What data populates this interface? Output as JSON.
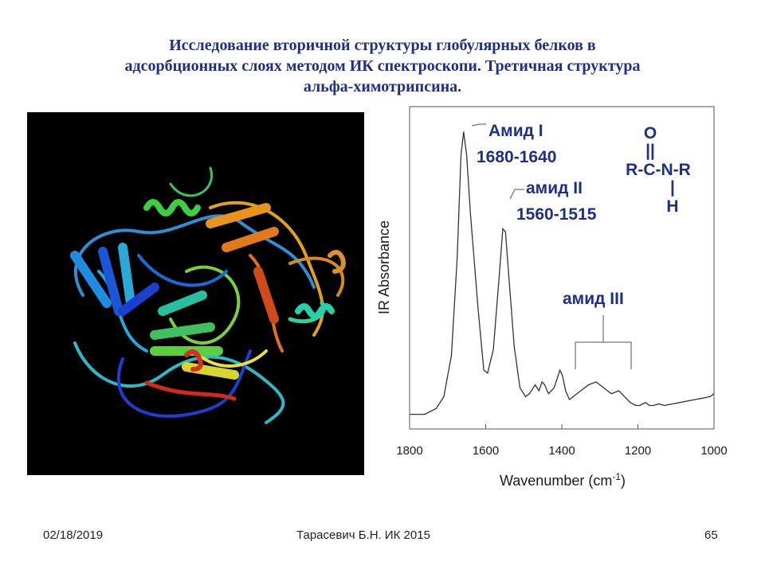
{
  "title": {
    "line1": "Исследование вторичной структуры глобулярных белков в",
    "line2": "адсорбционных слоях методом ИК спектроскопи. Третичная структура",
    "line3": "альфа-химотрипсина."
  },
  "footer": {
    "date": "02/18/2019",
    "center": "Тарасевич Б.Н.  ИК 2015",
    "page": "65"
  },
  "colors": {
    "title": "#1f2f86",
    "annotation": "#1f2f86"
  },
  "chart_data": {
    "type": "line",
    "xlabel": "Wavenumber (cm",
    "xlabel_sup": "-1",
    "xlabel_close": ")",
    "ylabel": "IR Absorbance",
    "xlim": [
      1800,
      1000
    ],
    "x_reversed": true,
    "xticks": [
      "1800",
      "1600",
      "1400",
      "1200",
      "1000"
    ],
    "grid": false,
    "series": [
      {
        "x": [
          1800,
          1760,
          1730,
          1710,
          1690,
          1675,
          1665,
          1658,
          1650,
          1640,
          1620,
          1605,
          1595,
          1580,
          1565,
          1555,
          1548,
          1540,
          1525,
          1510,
          1495,
          1485,
          1470,
          1460,
          1452,
          1445,
          1435,
          1420,
          1405,
          1398,
          1390,
          1380,
          1370,
          1350,
          1330,
          1310,
          1300,
          1290,
          1270,
          1250,
          1235,
          1220,
          1205,
          1195,
          1180,
          1170,
          1160,
          1145,
          1130,
          1110,
          1090,
          1070,
          1050,
          1030,
          1010,
          1000
        ],
        "y": [
          0.02,
          0.02,
          0.04,
          0.08,
          0.22,
          0.55,
          0.9,
          0.98,
          0.9,
          0.7,
          0.38,
          0.17,
          0.16,
          0.24,
          0.48,
          0.65,
          0.64,
          0.5,
          0.25,
          0.11,
          0.08,
          0.09,
          0.12,
          0.1,
          0.13,
          0.12,
          0.09,
          0.11,
          0.17,
          0.15,
          0.1,
          0.07,
          0.08,
          0.1,
          0.12,
          0.13,
          0.12,
          0.11,
          0.09,
          0.1,
          0.08,
          0.06,
          0.05,
          0.05,
          0.06,
          0.05,
          0.05,
          0.055,
          0.05,
          0.055,
          0.06,
          0.065,
          0.07,
          0.075,
          0.08,
          0.09
        ]
      }
    ],
    "annotations": {
      "amide1_label": "Амид I",
      "amide1_range": "1680-1640",
      "amide2_label": "амид II",
      "amide2_range": "1560-1515",
      "amide3_label": "амид III",
      "formula_o": "O",
      "formula_double_bond": "||",
      "formula_main": "R-C-N-R",
      "formula_single_bond": "|",
      "formula_h": "H"
    }
  }
}
